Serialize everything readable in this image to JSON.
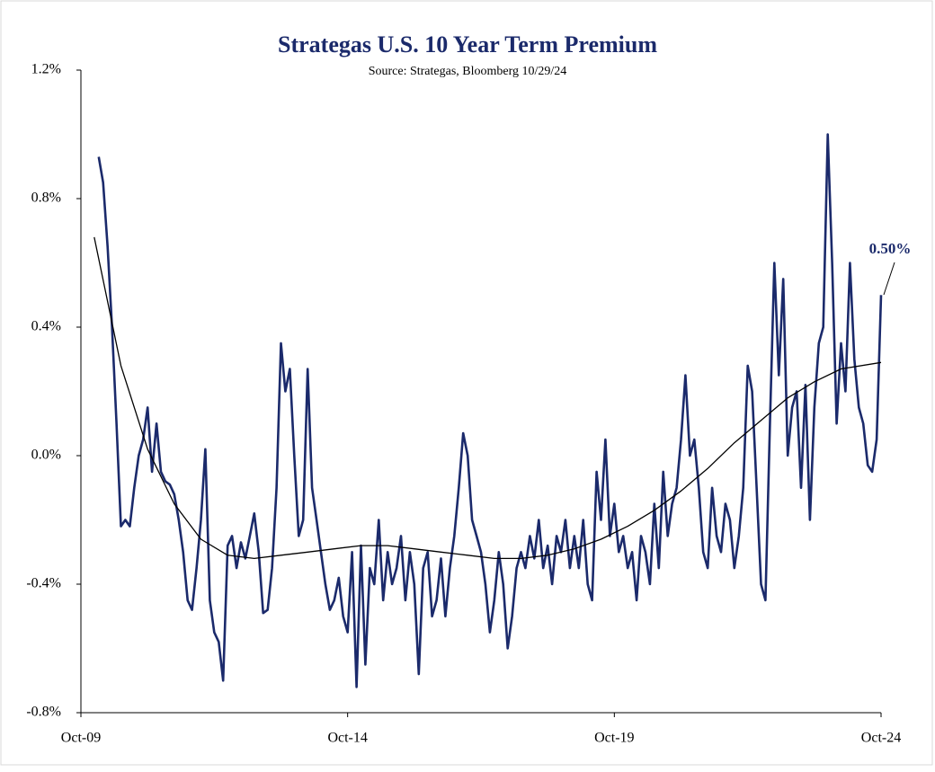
{
  "chart_data": {
    "type": "line",
    "title": "Strategas U.S. 10 Year Term Premium",
    "subtitle": "Source: Strategas, Bloomberg 10/29/24",
    "annotation": "0.50%",
    "xlim": [
      "2009-10",
      "2024-10"
    ],
    "xticks": [
      {
        "value": "2009-10",
        "label": "Oct-09"
      },
      {
        "value": "2014-10",
        "label": "Oct-14"
      },
      {
        "value": "2019-10",
        "label": "Oct-19"
      },
      {
        "value": "2024-10",
        "label": "Oct-24"
      }
    ],
    "ylim": [
      -0.8,
      1.2
    ],
    "yticks": [
      {
        "value": -0.8,
        "label": "-0.8%"
      },
      {
        "value": -0.4,
        "label": "-0.4%"
      },
      {
        "value": 0,
        "label": "0.0%"
      },
      {
        "value": 0.4,
        "label": "0.4%"
      },
      {
        "value": 0.8,
        "label": "0.8%"
      },
      {
        "value": 1.2,
        "label": "1.2%"
      }
    ],
    "series": [
      {
        "color": "#1b2a6b",
        "x": [
          "2010-02",
          "2010-03",
          "2010-04",
          "2010-05",
          "2010-06",
          "2010-07",
          "2010-08",
          "2010-09",
          "2010-10",
          "2010-11",
          "2010-12",
          "2011-01",
          "2011-02",
          "2011-03",
          "2011-04",
          "2011-05",
          "2011-06",
          "2011-07",
          "2011-08",
          "2011-09",
          "2011-10",
          "2011-11",
          "2011-12",
          "2012-01",
          "2012-02",
          "2012-03",
          "2012-04",
          "2012-05",
          "2012-06",
          "2012-07",
          "2012-08",
          "2012-09",
          "2012-10",
          "2012-11",
          "2012-12",
          "2013-01",
          "2013-02",
          "2013-03",
          "2013-04",
          "2013-05",
          "2013-06",
          "2013-07",
          "2013-08",
          "2013-09",
          "2013-10",
          "2013-11",
          "2013-12",
          "2014-01",
          "2014-02",
          "2014-03",
          "2014-04",
          "2014-05",
          "2014-06",
          "2014-07",
          "2014-08",
          "2014-09",
          "2014-10",
          "2014-11",
          "2014-12",
          "2015-01",
          "2015-02",
          "2015-03",
          "2015-04",
          "2015-05",
          "2015-06",
          "2015-07",
          "2015-08",
          "2015-09",
          "2015-10",
          "2015-11",
          "2015-12",
          "2016-01",
          "2016-02",
          "2016-03",
          "2016-04",
          "2016-05",
          "2016-06",
          "2016-07",
          "2016-08",
          "2016-09",
          "2016-10",
          "2016-11",
          "2016-12",
          "2017-01",
          "2017-02",
          "2017-03",
          "2017-04",
          "2017-05",
          "2017-06",
          "2017-07",
          "2017-08",
          "2017-09",
          "2017-10",
          "2017-11",
          "2017-12",
          "2018-01",
          "2018-02",
          "2018-03",
          "2018-04",
          "2018-05",
          "2018-06",
          "2018-07",
          "2018-08",
          "2018-09",
          "2018-10",
          "2018-11",
          "2018-12",
          "2019-01",
          "2019-02",
          "2019-03",
          "2019-04",
          "2019-05",
          "2019-06",
          "2019-07",
          "2019-08",
          "2019-09",
          "2019-10",
          "2019-11",
          "2019-12",
          "2020-01",
          "2020-02",
          "2020-03",
          "2020-04",
          "2020-05",
          "2020-06",
          "2020-07",
          "2020-08",
          "2020-09",
          "2020-10",
          "2020-11",
          "2020-12",
          "2021-01",
          "2021-02",
          "2021-03",
          "2021-04",
          "2021-05",
          "2021-06",
          "2021-07",
          "2021-08",
          "2021-09",
          "2021-10",
          "2021-11",
          "2021-12",
          "2022-01",
          "2022-02",
          "2022-03",
          "2022-04",
          "2022-05",
          "2022-06",
          "2022-07",
          "2022-08",
          "2022-09",
          "2022-10",
          "2022-11",
          "2022-12",
          "2023-01",
          "2023-02",
          "2023-03",
          "2023-04",
          "2023-05",
          "2023-06",
          "2023-07",
          "2023-08",
          "2023-09",
          "2023-10",
          "2023-11",
          "2023-12",
          "2024-01",
          "2024-02",
          "2024-03",
          "2024-04",
          "2024-05",
          "2024-06",
          "2024-07",
          "2024-08",
          "2024-09",
          "2024-10"
        ],
        "values": [
          0.93,
          0.85,
          0.65,
          0.4,
          0.1,
          -0.22,
          -0.2,
          -0.22,
          -0.1,
          0.0,
          0.05,
          0.15,
          -0.05,
          0.1,
          -0.05,
          -0.08,
          -0.09,
          -0.12,
          -0.2,
          -0.3,
          -0.45,
          -0.48,
          -0.35,
          -0.2,
          0.02,
          -0.45,
          -0.55,
          -0.58,
          -0.7,
          -0.28,
          -0.25,
          -0.35,
          -0.27,
          -0.32,
          -0.25,
          -0.18,
          -0.3,
          -0.49,
          -0.48,
          -0.35,
          -0.1,
          0.35,
          0.2,
          0.27,
          0.0,
          -0.25,
          -0.2,
          0.27,
          -0.1,
          -0.2,
          -0.3,
          -0.4,
          -0.48,
          -0.45,
          -0.38,
          -0.5,
          -0.55,
          -0.3,
          -0.72,
          -0.28,
          -0.65,
          -0.35,
          -0.4,
          -0.2,
          -0.45,
          -0.3,
          -0.4,
          -0.35,
          -0.25,
          -0.45,
          -0.3,
          -0.4,
          -0.68,
          -0.35,
          -0.3,
          -0.5,
          -0.45,
          -0.32,
          -0.5,
          -0.35,
          -0.25,
          -0.1,
          0.07,
          0.0,
          -0.2,
          -0.25,
          -0.3,
          -0.4,
          -0.55,
          -0.45,
          -0.3,
          -0.4,
          -0.6,
          -0.5,
          -0.35,
          -0.3,
          -0.35,
          -0.25,
          -0.32,
          -0.2,
          -0.35,
          -0.28,
          -0.4,
          -0.25,
          -0.3,
          -0.2,
          -0.35,
          -0.25,
          -0.35,
          -0.2,
          -0.4,
          -0.45,
          -0.05,
          -0.2,
          0.05,
          -0.25,
          -0.15,
          -0.3,
          -0.25,
          -0.35,
          -0.3,
          -0.45,
          -0.25,
          -0.3,
          -0.4,
          -0.15,
          -0.35,
          -0.05,
          -0.25,
          -0.15,
          -0.1,
          0.05,
          0.25,
          0.0,
          0.05,
          -0.1,
          -0.3,
          -0.35,
          -0.1,
          -0.25,
          -0.3,
          -0.15,
          -0.2,
          -0.35,
          -0.25,
          -0.1,
          0.28,
          0.2,
          -0.1,
          -0.4,
          -0.45,
          0.1,
          0.6,
          0.25,
          0.55,
          0.0,
          0.15,
          0.2,
          -0.1,
          0.22,
          -0.2,
          0.15,
          0.35,
          0.4,
          1.0,
          0.6,
          0.1,
          0.35,
          0.2,
          0.6,
          0.3,
          0.15,
          0.1,
          -0.03,
          -0.05,
          0.05,
          0.5
        ]
      },
      {
        "color": "#000000",
        "x": [
          "2010-01",
          "2010-07",
          "2011-01",
          "2011-07",
          "2012-01",
          "2012-07",
          "2013-01",
          "2013-07",
          "2014-01",
          "2014-07",
          "2015-01",
          "2015-07",
          "2016-01",
          "2016-07",
          "2017-01",
          "2017-07",
          "2018-01",
          "2018-07",
          "2019-01",
          "2019-07",
          "2020-01",
          "2020-07",
          "2021-01",
          "2021-07",
          "2022-01",
          "2022-07",
          "2023-01",
          "2023-07",
          "2024-01",
          "2024-10"
        ],
        "values": [
          0.68,
          0.28,
          0.02,
          -0.15,
          -0.26,
          -0.31,
          -0.32,
          -0.31,
          -0.3,
          -0.29,
          -0.28,
          -0.28,
          -0.29,
          -0.3,
          -0.31,
          -0.32,
          -0.32,
          -0.31,
          -0.29,
          -0.26,
          -0.22,
          -0.17,
          -0.11,
          -0.04,
          0.04,
          0.11,
          0.18,
          0.23,
          0.27,
          0.29
        ]
      }
    ]
  }
}
